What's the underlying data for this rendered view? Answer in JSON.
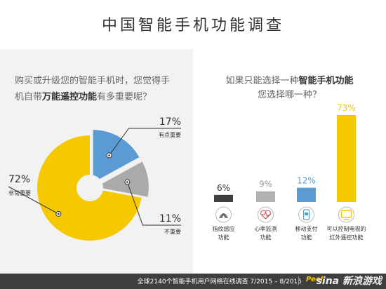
{
  "page_title": "中国智能手机功能调查",
  "left_question": {
    "line1": "购买或升级您的智能手机时，您觉得手",
    "line2_pre": "机自带",
    "line2_bold": "万能遥控功能",
    "line2_post": "有多重要呢？"
  },
  "right_question": {
    "line1_pre": "如果只能选择一种",
    "line1_bold": "智能手机功能",
    "line2": "您选择哪一种？"
  },
  "footer": {
    "text": "全球2140个智能手机用户网络在线调查 7/2015 – 8/2015",
    "brand": "Peel",
    "watermark": "sina 新浪游戏"
  },
  "chart_data": [
    {
      "type": "pie",
      "style": "donut",
      "slices": [
        {
          "label": "有点重要",
          "value": 17,
          "value_label": "17%",
          "color": "#5b9bd5"
        },
        {
          "label": "不重要",
          "value": 11,
          "value_label": "11%",
          "color": "#aaaaaa"
        },
        {
          "label": "非常重要",
          "value": 72,
          "value_label": "72%",
          "color": "#f5c800"
        }
      ]
    },
    {
      "type": "bar",
      "categories": [
        "指纹感应功能",
        "心率监测功能",
        "移动支付功能",
        "可以控制电视的红外遥控功能"
      ],
      "category_lines": [
        [
          "指纹感应",
          "功能"
        ],
        [
          "心率监测",
          "功能"
        ],
        [
          "移动支付",
          "功能"
        ],
        [
          "可以控制电视的",
          "红外遥控功能"
        ]
      ],
      "values": [
        6,
        9,
        12,
        73
      ],
      "value_labels": [
        "6%",
        "9%",
        "12%",
        "73%"
      ],
      "colors": [
        "#404040",
        "#b3b3b3",
        "#5b9bd5",
        "#f5c800"
      ],
      "icons": [
        "fingerprint-icon",
        "heart-rate-icon",
        "phone-payment-icon",
        "tv-remote-icon"
      ],
      "ylim": [
        0,
        73
      ]
    }
  ]
}
